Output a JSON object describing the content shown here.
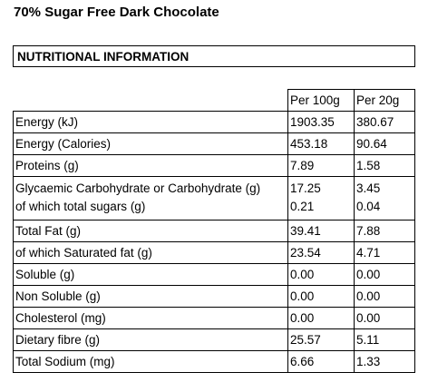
{
  "title": "70% Sugar Free Dark Chocolate",
  "section_heading": "NUTRITIONAL INFORMATION",
  "columns": [
    "Per 100g",
    "Per 20g"
  ],
  "rows": [
    {
      "label": "Energy (kJ)",
      "per100": "1903.35",
      "per20": "380.67"
    },
    {
      "label": "Energy (Calories)",
      "per100": "453.18",
      "per20": "90.64"
    },
    {
      "label": "Proteins (g)",
      "per100": "7.89",
      "per20": "1.58"
    },
    {
      "label": "Glycaemic Carbohydrate or Carbohydrate (g)",
      "per100": "17.25",
      "per20": "3.45",
      "sub_label": "of which total sugars (g)",
      "sub_per100": "0.21",
      "sub_per20": "0.04"
    },
    {
      "label": "Total Fat (g)",
      "per100": "39.41",
      "per20": "7.88"
    },
    {
      "label": "of which Saturated fat (g)",
      "per100": "23.54",
      "per20": "4.71"
    },
    {
      "label": "Soluble (g)",
      "per100": "0.00",
      "per20": "0.00"
    },
    {
      "label": "Non Soluble (g)",
      "per100": "0.00",
      "per20": "0.00"
    },
    {
      "label": "Cholesterol (mg)",
      "per100": "0.00",
      "per20": "0.00"
    },
    {
      "label": "Dietary fibre (g)",
      "per100": "25.57",
      "per20": "5.11"
    },
    {
      "label": "Total Sodium (mg)",
      "per100": "6.66",
      "per20": "1.33"
    }
  ]
}
